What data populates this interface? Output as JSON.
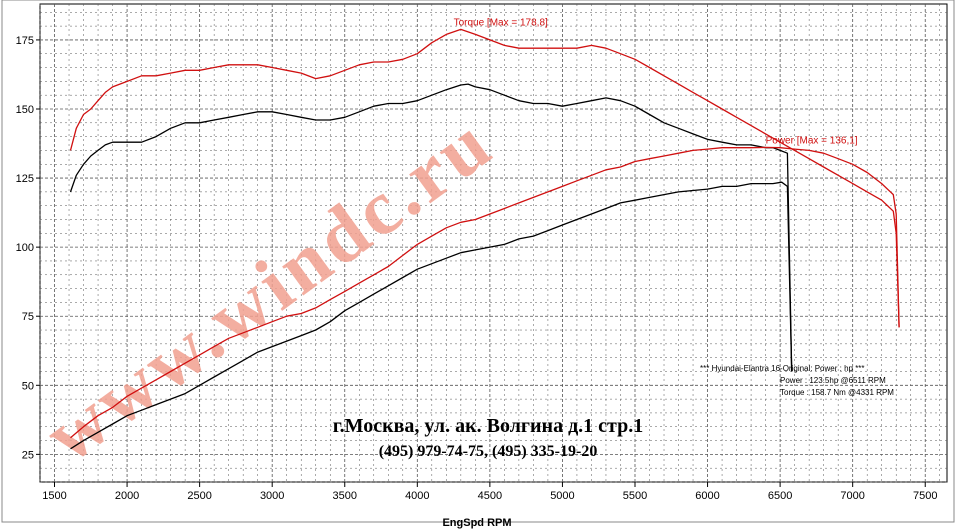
{
  "watermark": "www.windc.ru",
  "address": "г.Москва, ул. ак. Волгина д.1 стр.1",
  "phones": "(495) 979-74-75, (495) 335-19-20",
  "legend": {
    "line1": "*** Hyundai-Elantra 16-Original: Power : hp  ***",
    "line2": "Power : 123.5hp   @6511 RPM",
    "line3": "Torque : 158.7 Nm   @4331 RPM"
  },
  "colors": {
    "red": "#d01010",
    "black": "#000000",
    "grid": "#555555",
    "watermark": "#f2a090"
  },
  "chart_data": {
    "type": "line",
    "xlabel": "EngSpd  RPM",
    "xlim": [
      1400,
      7650
    ],
    "ylim": [
      15,
      188
    ],
    "x_ticks": [
      1500,
      2000,
      2500,
      3000,
      3500,
      4000,
      4500,
      5000,
      5500,
      6000,
      6500,
      7000,
      7500
    ],
    "y_ticks": [
      25,
      50,
      75,
      100,
      125,
      150,
      175
    ],
    "grid": true,
    "annotations": [
      {
        "text": "Torque [Max = 178,8]",
        "x": 4250,
        "y": 178.8,
        "color": "red"
      },
      {
        "text": "Power  [Max = 136,1]",
        "x": 6400,
        "y": 136.1,
        "color": "red"
      }
    ],
    "series": [
      {
        "color": "red",
        "x": [
          1610,
          1650,
          1700,
          1750,
          1800,
          1850,
          1900,
          2000,
          2100,
          2200,
          2300,
          2400,
          2500,
          2600,
          2700,
          2800,
          2900,
          3000,
          3100,
          3200,
          3300,
          3400,
          3500,
          3600,
          3700,
          3800,
          3900,
          4000,
          4100,
          4200,
          4300,
          4400,
          4500,
          4600,
          4700,
          4800,
          4900,
          5000,
          5100,
          5200,
          5300,
          5400,
          5500,
          5600,
          5700,
          5800,
          5900,
          6000,
          6100,
          6200,
          6300,
          6400,
          6500,
          6600,
          6700,
          6800,
          6900,
          7000,
          7100,
          7200,
          7280,
          7300,
          7320
        ],
        "y": [
          135,
          143,
          148,
          150,
          153,
          156,
          158,
          160,
          162,
          162,
          163,
          164,
          164,
          165,
          166,
          166,
          166,
          165,
          164,
          163,
          161,
          162,
          164,
          166,
          167,
          167,
          168,
          170,
          174,
          177,
          178.8,
          177,
          175,
          173,
          172,
          172,
          172,
          172,
          172,
          173,
          172,
          170,
          168,
          165,
          162,
          159,
          156,
          153,
          150,
          147,
          144,
          141,
          138,
          135,
          132,
          129,
          126,
          123,
          120,
          117,
          113,
          105,
          71
        ]
      },
      {
        "color": "black",
        "x": [
          1610,
          1650,
          1700,
          1750,
          1800,
          1850,
          1900,
          2000,
          2100,
          2200,
          2300,
          2400,
          2500,
          2600,
          2700,
          2800,
          2900,
          3000,
          3100,
          3200,
          3300,
          3400,
          3500,
          3600,
          3700,
          3800,
          3900,
          4000,
          4100,
          4200,
          4300,
          4350,
          4400,
          4500,
          4600,
          4700,
          4800,
          4900,
          5000,
          5100,
          5200,
          5300,
          5400,
          5500,
          5600,
          5700,
          5800,
          5900,
          6000,
          6100,
          6200,
          6300,
          6400,
          6450,
          6500,
          6550,
          6580
        ],
        "y": [
          120,
          126,
          130,
          133,
          135,
          137,
          138,
          138,
          138,
          140,
          143,
          145,
          145,
          146,
          147,
          148,
          149,
          149,
          148,
          147,
          146,
          146,
          147,
          149,
          151,
          152,
          152,
          153,
          155,
          157,
          158.7,
          159,
          158,
          157,
          155,
          153,
          152,
          152,
          151,
          152,
          153,
          154,
          153,
          151,
          148,
          145,
          143,
          141,
          139,
          138,
          137,
          137,
          136,
          136,
          135,
          134,
          55
        ]
      },
      {
        "color": "red",
        "x": [
          1610,
          1700,
          1800,
          1900,
          2000,
          2100,
          2200,
          2300,
          2400,
          2500,
          2600,
          2700,
          2800,
          2900,
          3000,
          3100,
          3200,
          3300,
          3400,
          3500,
          3600,
          3700,
          3800,
          3900,
          4000,
          4100,
          4200,
          4300,
          4400,
          4500,
          4600,
          4700,
          4800,
          4900,
          5000,
          5100,
          5200,
          5300,
          5400,
          5500,
          5600,
          5700,
          5800,
          5900,
          6000,
          6100,
          6200,
          6300,
          6400,
          6500,
          6600,
          6700,
          6800,
          6900,
          7000,
          7100,
          7200,
          7280,
          7300,
          7320
        ],
        "y": [
          31,
          35,
          39,
          42,
          46,
          49,
          52,
          55,
          58,
          61,
          64,
          67,
          69,
          71,
          73,
          75,
          76,
          78,
          81,
          84,
          87,
          90,
          93,
          97,
          101,
          104,
          107,
          109,
          110,
          112,
          114,
          116,
          118,
          120,
          122,
          124,
          126,
          128,
          129,
          131,
          132,
          133,
          134,
          135,
          135.5,
          136,
          136,
          136,
          136.1,
          136,
          135.5,
          135,
          134,
          132,
          130,
          127,
          123,
          119,
          112,
          71
        ]
      },
      {
        "color": "black",
        "x": [
          1610,
          1700,
          1800,
          1900,
          2000,
          2100,
          2200,
          2300,
          2400,
          2500,
          2600,
          2700,
          2800,
          2900,
          3000,
          3100,
          3200,
          3300,
          3400,
          3500,
          3600,
          3700,
          3800,
          3900,
          4000,
          4100,
          4200,
          4300,
          4400,
          4500,
          4600,
          4700,
          4800,
          4900,
          5000,
          5100,
          5200,
          5300,
          5400,
          5500,
          5600,
          5700,
          5800,
          5900,
          6000,
          6100,
          6200,
          6300,
          6400,
          6450,
          6511,
          6550,
          6580
        ],
        "y": [
          27,
          30,
          33,
          36,
          39,
          41,
          43,
          45,
          47,
          50,
          53,
          56,
          59,
          62,
          64,
          66,
          68,
          70,
          73,
          77,
          80,
          83,
          86,
          89,
          92,
          94,
          96,
          98,
          99,
          100,
          101,
          103,
          104,
          106,
          108,
          110,
          112,
          114,
          116,
          117,
          118,
          119,
          120,
          120.5,
          121,
          122,
          122,
          123,
          123,
          123,
          123.5,
          122,
          55
        ]
      }
    ]
  }
}
